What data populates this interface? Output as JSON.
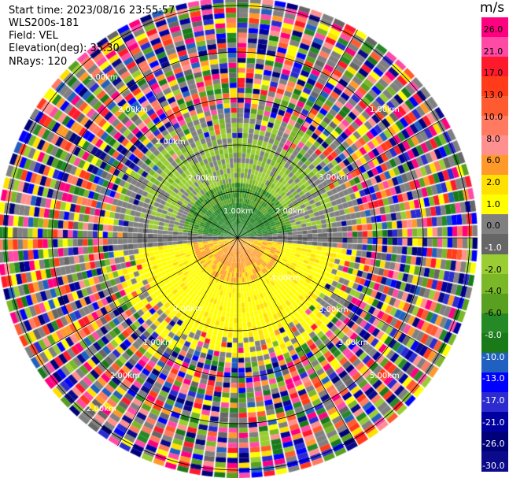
{
  "header": {
    "start_time": "Start time: 2023/08/16 23:55:57",
    "instrument": "WLS200s-181",
    "field": "Field: VEL",
    "elevation": "Elevation(deg): 35.30",
    "nrays": "NRays: 120"
  },
  "colorbar": {
    "unit": "m/s",
    "ticks": [
      "26.0",
      "21.0",
      "17.0",
      "13.0",
      "10.0",
      "8.0",
      "6.0",
      "2.0",
      "1.0",
      "0.0",
      "-1.0",
      "-2.0",
      "-4.0",
      "-6.0",
      "-8.0",
      "-10.0",
      "-13.0",
      "-17.0",
      "-21.0",
      "-26.0",
      "-30.0"
    ],
    "colors": [
      "#fe0080",
      "#ff4aa6",
      "#fe1a2c",
      "#ff3b1a",
      "#ff5a30",
      "#ff7a60",
      "#ff9090",
      "#ff9a2a",
      "#ffe000",
      "#fffe00",
      "#808080",
      "#666666",
      "#9acd32",
      "#7ab828",
      "#5aa020",
      "#258a25",
      "#1a7a1a",
      "#2060c0",
      "#0000ff",
      "#2b2bd0",
      "#0000a0",
      "#000078",
      "#0a0a8a"
    ]
  },
  "chart_data": {
    "type": "heatmap",
    "projection": "polar (PPI)",
    "field": "VEL",
    "units": "m/s",
    "elevation_deg": 35.3,
    "n_rays": 120,
    "range_ring_labels": [
      "1.00km",
      "2.00km",
      "3.00km",
      "4.00km",
      "5.00km",
      "6.00km"
    ],
    "color_scale": [
      26.0,
      21.0,
      17.0,
      13.0,
      10.0,
      8.0,
      6.0,
      2.0,
      1.0,
      0.0,
      -1.0,
      -2.0,
      -4.0,
      -6.0,
      -8.0,
      -10.0,
      -13.0,
      -17.0,
      -21.0,
      -26.0,
      -30.0
    ],
    "pattern": {
      "north_sector_near_range": "negative velocities (-2 to -8 m/s, green)",
      "south_sector_near_range": "positive velocities (2 to 8 m/s, yellow/orange)",
      "near_zero_band": "east-west line, ~0 m/s (gray)",
      "far_range": "noisy random values spanning full color scale"
    }
  }
}
